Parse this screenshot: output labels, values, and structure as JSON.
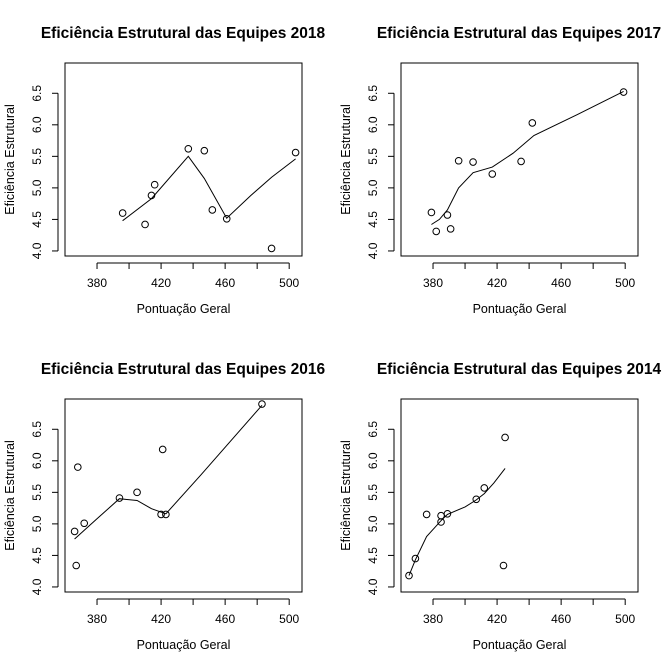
{
  "chart_data": [
    {
      "type": "scatter",
      "title": "Eficiência Estrutural das Equipes 2018",
      "xlabel": "Pontuação Geral",
      "ylabel": "Eficiência Estrutural",
      "xlim": [
        360,
        508
      ],
      "ylim": [
        3.92,
        6.98
      ],
      "xticks": [
        380,
        420,
        460,
        500
      ],
      "yticks": [
        4.0,
        4.5,
        5.0,
        5.5,
        6.0,
        6.5
      ],
      "xtick_labels": [
        "380",
        "420",
        "460",
        "500"
      ],
      "ytick_labels": [
        "4.0",
        "4.5",
        "5.0",
        "5.5",
        "6.0",
        "6.5"
      ],
      "series": [
        {
          "kind": "points",
          "x": [
            396,
            410,
            414,
            416,
            437,
            447,
            452,
            461,
            489,
            504
          ],
          "y": [
            4.6,
            4.42,
            4.88,
            5.05,
            5.62,
            5.59,
            4.65,
            4.51,
            4.04,
            5.56
          ]
        },
        {
          "kind": "smooth-line",
          "x": [
            396,
            414,
            437,
            447,
            461,
            476,
            489,
            504
          ],
          "y": [
            4.48,
            4.83,
            5.5,
            5.15,
            4.52,
            4.88,
            5.17,
            5.46
          ]
        }
      ]
    },
    {
      "type": "scatter",
      "title": "Eficiência Estrutural das Equipes 2017",
      "xlabel": "Pontuação Geral",
      "ylabel": "Eficiência Estrutural",
      "xlim": [
        360,
        508
      ],
      "ylim": [
        3.92,
        6.98
      ],
      "xticks": [
        380,
        420,
        460,
        500
      ],
      "yticks": [
        4.0,
        4.5,
        5.0,
        5.5,
        6.0,
        6.5
      ],
      "xtick_labels": [
        "380",
        "420",
        "460",
        "500"
      ],
      "ytick_labels": [
        "4.0",
        "4.5",
        "5.0",
        "5.5",
        "6.0",
        "6.5"
      ],
      "series": [
        {
          "kind": "points",
          "x": [
            379,
            382,
            389,
            391,
            396,
            405,
            417,
            435,
            442,
            499
          ],
          "y": [
            4.61,
            4.31,
            4.57,
            4.35,
            5.43,
            5.41,
            5.22,
            5.42,
            6.03,
            6.52
          ]
        },
        {
          "kind": "smooth-line",
          "x": [
            379,
            384,
            389,
            396,
            405,
            417,
            430,
            443,
            470,
            499
          ],
          "y": [
            4.42,
            4.5,
            4.65,
            5.0,
            5.24,
            5.33,
            5.55,
            5.83,
            6.16,
            6.53
          ]
        }
      ]
    },
    {
      "type": "scatter",
      "title": "Eficiência Estrutural das Equipes 2016",
      "xlabel": "Pontuação Geral",
      "ylabel": "Eficiência Estrutural",
      "xlim": [
        360,
        508
      ],
      "ylim": [
        3.92,
        6.98
      ],
      "xticks": [
        380,
        420,
        460,
        500
      ],
      "yticks": [
        4.0,
        4.5,
        5.0,
        5.5,
        6.0,
        6.5
      ],
      "xtick_labels": [
        "380",
        "420",
        "460",
        "500"
      ],
      "ytick_labels": [
        "4.0",
        "4.5",
        "5.0",
        "5.5",
        "6.0",
        "6.5"
      ],
      "series": [
        {
          "kind": "points",
          "x": [
            366,
            367,
            368,
            372,
            394,
            405,
            420,
            421,
            423,
            483
          ],
          "y": [
            4.88,
            4.34,
            5.9,
            5.01,
            5.41,
            5.5,
            5.15,
            6.18,
            5.15,
            6.9
          ]
        },
        {
          "kind": "smooth-line",
          "x": [
            366,
            380,
            394,
            405,
            414,
            423,
            445,
            483
          ],
          "y": [
            4.76,
            5.08,
            5.4,
            5.37,
            5.24,
            5.16,
            5.78,
            6.88
          ]
        }
      ]
    },
    {
      "type": "scatter",
      "title": "Eficiência Estrutural das Equipes 2014",
      "xlabel": "Pontuação Geral",
      "ylabel": "Eficiência Estrutural",
      "xlim": [
        360,
        508
      ],
      "ylim": [
        3.92,
        6.98
      ],
      "xticks": [
        380,
        420,
        460,
        500
      ],
      "yticks": [
        4.0,
        4.5,
        5.0,
        5.5,
        6.0,
        6.5
      ],
      "xtick_labels": [
        "380",
        "420",
        "460",
        "500"
      ],
      "ytick_labels": [
        "4.0",
        "4.5",
        "5.0",
        "5.5",
        "6.0",
        "6.5"
      ],
      "series": [
        {
          "kind": "points",
          "x": [
            365,
            369,
            376,
            385,
            385,
            389,
            407,
            412,
            424,
            425
          ],
          "y": [
            4.18,
            4.45,
            5.15,
            5.13,
            5.03,
            5.16,
            5.39,
            5.57,
            4.34,
            6.37
          ]
        },
        {
          "kind": "smooth-line",
          "x": [
            365,
            369,
            376,
            385,
            389,
            400,
            407,
            412,
            418,
            425
          ],
          "y": [
            4.18,
            4.43,
            4.8,
            5.05,
            5.15,
            5.27,
            5.38,
            5.48,
            5.65,
            5.88
          ]
        }
      ]
    }
  ],
  "colors": {
    "background": "#ffffff",
    "ink": "#000000"
  }
}
